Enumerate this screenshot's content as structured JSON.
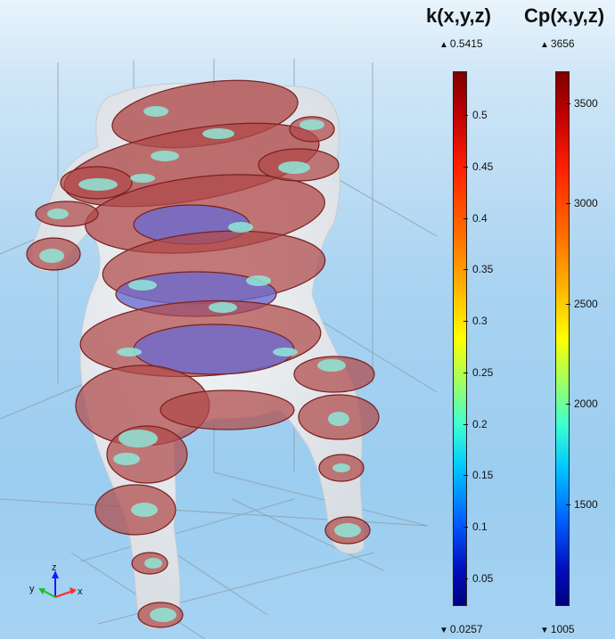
{
  "colors": {
    "background_top": "#e9f4fc",
    "background_bottom": "#9bcdf0",
    "slice_high": "#b04a4a",
    "slice_low": "#6a6ad0",
    "patch": "#8fe8d8"
  },
  "legends": [
    {
      "title": "k(x,y,z)",
      "max_label": "0.5415",
      "min_label": "0.0257",
      "ticks": [
        {
          "label": "0.5",
          "value": 0.5
        },
        {
          "label": "0.45",
          "value": 0.45
        },
        {
          "label": "0.4",
          "value": 0.4
        },
        {
          "label": "0.35",
          "value": 0.35
        },
        {
          "label": "0.3",
          "value": 0.3
        },
        {
          "label": "0.25",
          "value": 0.25
        },
        {
          "label": "0.2",
          "value": 0.2
        },
        {
          "label": "0.15",
          "value": 0.15
        },
        {
          "label": "0.1",
          "value": 0.1
        },
        {
          "label": "0.05",
          "value": 0.05
        }
      ]
    },
    {
      "title": "Cp(x,y,z)",
      "max_label": "3656",
      "min_label": "1005",
      "ticks": [
        {
          "label": "3500",
          "value": 3500
        },
        {
          "label": "3000",
          "value": 3000
        },
        {
          "label": "2500",
          "value": 2500
        },
        {
          "label": "2000",
          "value": 2000
        },
        {
          "label": "1500",
          "value": 1500
        }
      ]
    }
  ],
  "triad": {
    "x_label": "x",
    "y_label": "y",
    "z_label": "z"
  },
  "icons": {
    "max_marker": "triangle-up-icon",
    "min_marker": "triangle-down-icon"
  }
}
